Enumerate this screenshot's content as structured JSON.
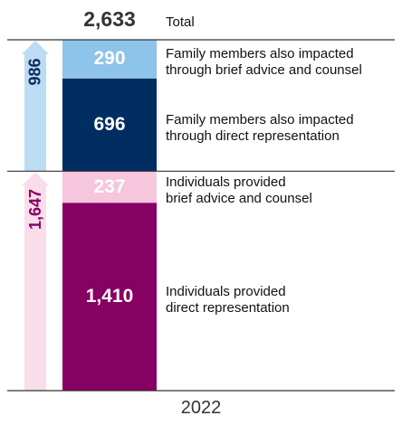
{
  "chart_data": {
    "type": "stacked-bar",
    "categories": [
      "2022"
    ],
    "total": {
      "value": 2633,
      "label": "2,633",
      "name": "Total"
    },
    "series": [
      {
        "name": "Individuals provided\ndirect representation",
        "color": "#870063",
        "values": [
          1410
        ],
        "value_labels": [
          "1,410"
        ]
      },
      {
        "name": "Individuals provided\nbrief advice and counsel",
        "color": "#f5c6dc",
        "values": [
          237
        ]
      },
      {
        "name": "Family members also impacted\nthrough direct representation",
        "color": "#002d62",
        "values": [
          696
        ]
      },
      {
        "name": "Family members also impacted\nthrough brief advice and counsel",
        "color": "#8ec3ea",
        "values": [
          290
        ]
      }
    ],
    "groups": [
      {
        "value": 1647,
        "label": "1,647",
        "color": "#f9dde9",
        "text_color": "#870063"
      },
      {
        "value": 986,
        "color": "#bcdcf4",
        "text_color": "#0d2a5c"
      }
    ]
  }
}
